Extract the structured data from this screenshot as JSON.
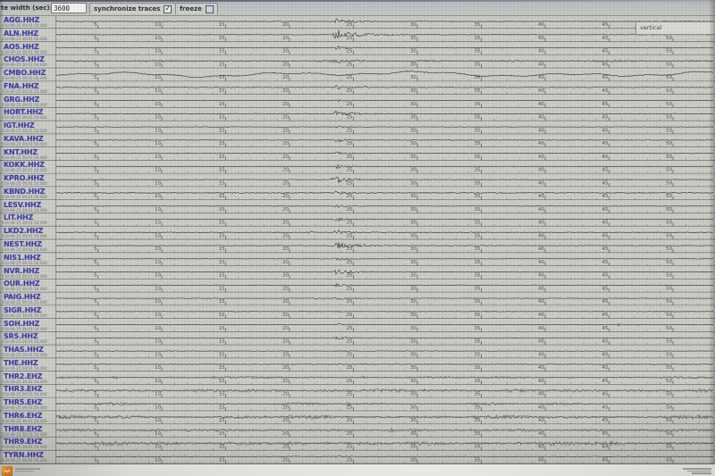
{
  "toolbar": {
    "trace_width_label": "te width (sec):",
    "trace_width_value": "3600",
    "synchronize_label": "synchronize traces",
    "synchronize_checked": true,
    "freeze_label": "freeze",
    "freeze_checked": false,
    "orientation_label": "vertical"
  },
  "start_time": "018-06-25 00:01:50.000",
  "ruler": {
    "tick_labels": [
      "5",
      "10",
      "15",
      "20",
      "25",
      "30",
      "35",
      "40",
      "45",
      "50"
    ],
    "minutes_per_major_tick": 5,
    "total_minutes_visible": 53
  },
  "event": {
    "burst_minute": 23.4
  },
  "colors": {
    "station_label": "#3a3aa2",
    "trace": "#1b1b18",
    "screen_bg": "#cbccc6",
    "ruler_line": "#5f5f58",
    "logo_orange": "#d9771b"
  },
  "stations": [
    {
      "name": "AGG.HHZ",
      "type": "quiet",
      "noise": 0.35,
      "burst": {
        "t": 23.4,
        "amp": 2.8,
        "coda": 1.8
      }
    },
    {
      "name": "ALN.HHZ",
      "type": "quiet",
      "noise": 0.35,
      "burst": {
        "t": 23.3,
        "amp": 4.2,
        "coda": 2.6
      }
    },
    {
      "name": "AOS.HHZ",
      "type": "quiet",
      "noise": 0.3,
      "burst": {
        "t": 23.4,
        "amp": 1.8,
        "coda": 1.4
      }
    },
    {
      "name": "CHOS.HHZ",
      "type": "noisy",
      "noise": 1.0,
      "burst": {
        "t": 23.4,
        "amp": 1.6,
        "coda": 2.0
      }
    },
    {
      "name": "CMBO.HHZ",
      "type": "meander",
      "noise": 0.5,
      "mamp": 2.6
    },
    {
      "name": "FNA.HHZ",
      "type": "quiet",
      "noise": 0.4,
      "burst": {
        "t": 23.3,
        "amp": 2.6,
        "coda": 1.2
      },
      "spikes": [
        [
          25.9,
          1.2
        ]
      ]
    },
    {
      "name": "GRG.HHZ",
      "type": "quiet",
      "noise": 0.3,
      "burst": {
        "t": 23.4,
        "amp": 1.6,
        "coda": 1.2
      }
    },
    {
      "name": "HORT.HHZ",
      "type": "quiet",
      "noise": 0.35,
      "burst": {
        "t": 23.4,
        "amp": 3.2,
        "coda": 1.6
      }
    },
    {
      "name": "IGT.HHZ",
      "type": "quiet",
      "noise": 0.3,
      "burst": {
        "t": 23.4,
        "amp": 1.2,
        "coda": 1.0
      }
    },
    {
      "name": "KAVA.HHZ",
      "type": "quiet",
      "noise": 0.3,
      "burst": {
        "t": 23.4,
        "amp": 2.0,
        "coda": 1.4
      }
    },
    {
      "name": "KNT.HHZ",
      "type": "quiet",
      "noise": 0.3,
      "burst": {
        "t": 23.4,
        "amp": 1.4,
        "coda": 1.2
      }
    },
    {
      "name": "KOKK.HHZ",
      "type": "quiet",
      "noise": 0.3,
      "burst": {
        "t": 23.4,
        "amp": 2.0,
        "coda": 1.4
      }
    },
    {
      "name": "KPRO.HHZ",
      "type": "quiet",
      "noise": 0.3,
      "burst": {
        "t": 23.4,
        "amp": 4.0,
        "coda": 1.6
      },
      "spikes": [
        [
          23.4,
          2.0
        ]
      ]
    },
    {
      "name": "KBND.HHZ",
      "type": "quiet",
      "noise": 0.55,
      "burst": {
        "t": 23.4,
        "amp": 1.8,
        "coda": 1.4
      }
    },
    {
      "name": "LESV.HHZ",
      "type": "quiet",
      "noise": 0.3,
      "burst": {
        "t": 23.4,
        "amp": 1.4,
        "coda": 1.2
      }
    },
    {
      "name": "LIT.HHZ",
      "type": "quiet",
      "noise": 0.3,
      "burst": {
        "t": 23.4,
        "amp": 2.0,
        "coda": 1.4
      }
    },
    {
      "name": "LKD2.HHZ",
      "type": "quiet",
      "noise": 0.35,
      "burst": {
        "t": 23.4,
        "amp": 2.6,
        "coda": 1.6
      },
      "spikes": [
        [
          21.6,
          1.6
        ]
      ]
    },
    {
      "name": "NEST.HHZ",
      "type": "quiet",
      "noise": 0.35,
      "burst": {
        "t": 23.4,
        "amp": 3.4,
        "coda": 2.2
      }
    },
    {
      "name": "NIS1.HHZ",
      "type": "quiet",
      "noise": 0.3,
      "burst": {
        "t": 23.4,
        "amp": 1.8,
        "coda": 1.4
      }
    },
    {
      "name": "NVR.HHZ",
      "type": "quiet",
      "noise": 0.35,
      "burst": {
        "t": 23.4,
        "amp": 2.6,
        "coda": 1.8
      }
    },
    {
      "name": "OUR.HHZ",
      "type": "quiet",
      "noise": 0.3,
      "burst": {
        "t": 23.4,
        "amp": 1.8,
        "coda": 1.3
      }
    },
    {
      "name": "PAIG.HHZ",
      "type": "quiet",
      "noise": 0.3,
      "burst": {
        "t": 23.4,
        "amp": 1.8,
        "coda": 1.3
      },
      "spikes": [
        [
          21.9,
          1.4
        ]
      ]
    },
    {
      "name": "SIGR.HHZ",
      "type": "noisy",
      "noise": 0.45,
      "burst": {
        "t": 23.4,
        "amp": 1.0,
        "coda": 1.0
      }
    },
    {
      "name": "SOH.HHZ",
      "type": "quiet",
      "noise": 0.3,
      "burst": {
        "t": 23.4,
        "amp": 1.4,
        "coda": 1.1
      },
      "spikes": [
        [
          45.8,
          1.4
        ]
      ]
    },
    {
      "name": "SRS.HHZ",
      "type": "quiet",
      "noise": 0.3,
      "burst": {
        "t": 23.4,
        "amp": 1.7,
        "coda": 1.3
      }
    },
    {
      "name": "THAS.HHZ",
      "type": "quiet",
      "noise": 0.3,
      "burst": {
        "t": 23.4,
        "amp": 1.1,
        "coda": 1.0
      }
    },
    {
      "name": "THE.HHZ",
      "type": "quiet",
      "noise": 0.4,
      "burst": {
        "t": 22.8,
        "amp": 1.4,
        "coda": 1.0
      },
      "spikes": [
        [
          25.8,
          1.6
        ],
        [
          48.3,
          0.9
        ]
      ]
    },
    {
      "name": "THR2.EHZ",
      "type": "noisy",
      "noise": 0.85,
      "spikes": [
        [
          6.3,
          1.8
        ],
        [
          14.2,
          1.4
        ],
        [
          25.8,
          1.8
        ],
        [
          42.0,
          1.2
        ]
      ]
    },
    {
      "name": "THR3.EHZ",
      "type": "noisy",
      "noise": 1.3,
      "spikes": [
        [
          10.0,
          1.5
        ],
        [
          30.5,
          1.3
        ],
        [
          44.0,
          1.6
        ]
      ]
    },
    {
      "name": "THR5.EHZ",
      "type": "noisy",
      "noise": 1.0,
      "spikes": [
        [
          24.6,
          2.0
        ],
        [
          36.0,
          1.3
        ]
      ]
    },
    {
      "name": "THR6.EHZ",
      "type": "noisy",
      "noise": 1.5,
      "spikes": [
        [
          20.0,
          1.4
        ],
        [
          40.5,
          1.3
        ]
      ]
    },
    {
      "name": "THR8.EHZ",
      "type": "noisy",
      "noise": 1.1,
      "spikes": [
        [
          12.0,
          1.4
        ],
        [
          28.0,
          1.4
        ],
        [
          47.0,
          1.2
        ]
      ]
    },
    {
      "name": "THR9.EHZ",
      "type": "noisy",
      "noise": 1.6,
      "spikes": [
        [
          23.0,
          1.6
        ],
        [
          38.0,
          1.3
        ]
      ]
    },
    {
      "name": "TYRN.HHZ",
      "type": "quiet",
      "noise": 0.35,
      "burst": {
        "t": 23.4,
        "amp": 1.4,
        "coda": 1.1
      }
    }
  ]
}
